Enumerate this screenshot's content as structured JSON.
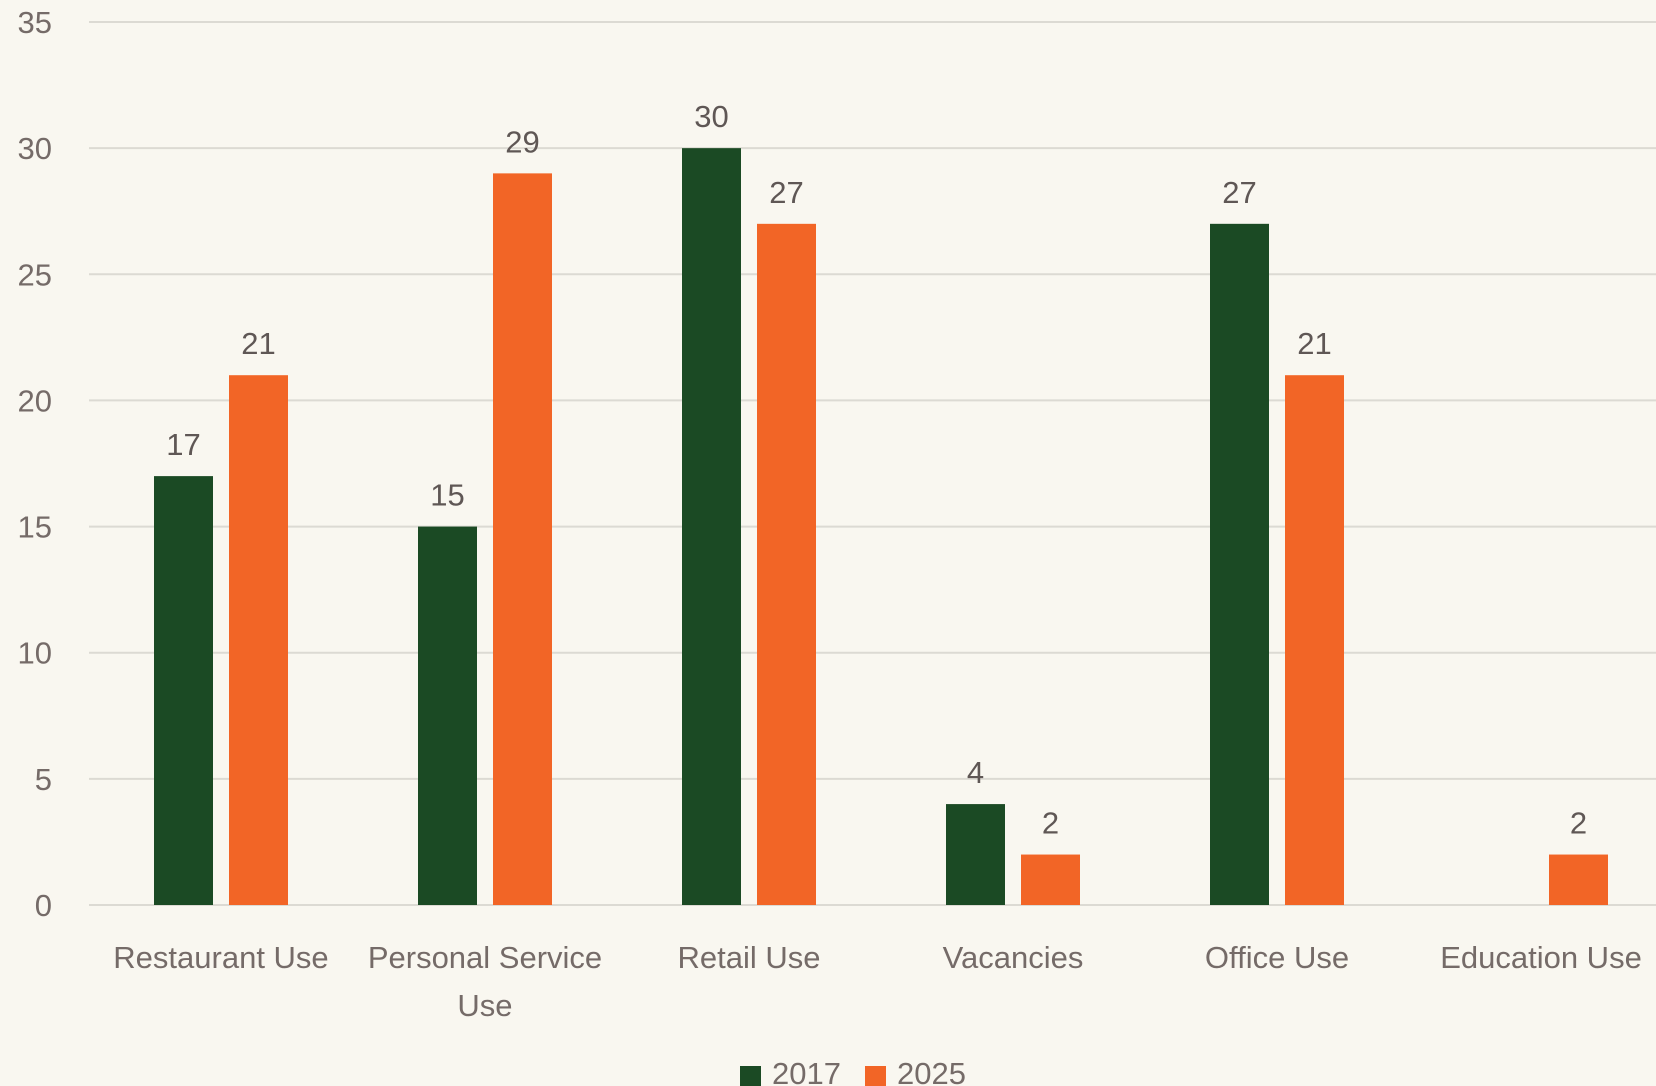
{
  "colors": {
    "2017": "#1b4a24",
    "2025": "#f26526",
    "background": "#f9f7f0",
    "grid": "#dcdad3",
    "text": "#756b68"
  },
  "chart_data": {
    "type": "bar",
    "categories": [
      [
        "Restaurant Use"
      ],
      [
        "Personal Service",
        "Use"
      ],
      [
        "Retail Use"
      ],
      [
        "Vacancies"
      ],
      [
        "Office Use"
      ],
      [
        "Education Use"
      ]
    ],
    "series": [
      {
        "name": "2017",
        "values": [
          17,
          15,
          30,
          4,
          27,
          null
        ]
      },
      {
        "name": "2025",
        "values": [
          21,
          29,
          27,
          2,
          21,
          2
        ]
      }
    ],
    "ylim": [
      0,
      35
    ],
    "yticks": [
      0,
      5,
      10,
      15,
      20,
      25,
      30,
      35
    ],
    "grid": true,
    "legend": "bottom-center",
    "data_labels": true
  }
}
